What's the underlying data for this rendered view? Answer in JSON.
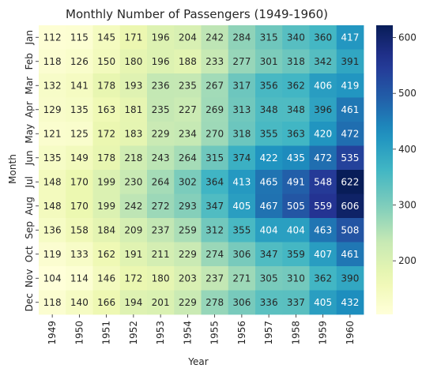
{
  "chart_data": {
    "type": "heatmap",
    "title": "Monthly Number of Passengers (1949-1960)",
    "xlabel": "Year",
    "ylabel": "Month",
    "x": [
      "1949",
      "1950",
      "1951",
      "1952",
      "1953",
      "1954",
      "1955",
      "1956",
      "1957",
      "1958",
      "1959",
      "1960"
    ],
    "y": [
      "Jan",
      "Feb",
      "Mar",
      "Apr",
      "May",
      "Jun",
      "Jul",
      "Aug",
      "Sep",
      "Oct",
      "Nov",
      "Dec"
    ],
    "values": [
      [
        112,
        115,
        145,
        171,
        196,
        204,
        242,
        284,
        315,
        340,
        360,
        417
      ],
      [
        118,
        126,
        150,
        180,
        196,
        188,
        233,
        277,
        301,
        318,
        342,
        391
      ],
      [
        132,
        141,
        178,
        193,
        236,
        235,
        267,
        317,
        356,
        362,
        406,
        419
      ],
      [
        129,
        135,
        163,
        181,
        235,
        227,
        269,
        313,
        348,
        348,
        396,
        461
      ],
      [
        121,
        125,
        172,
        183,
        229,
        234,
        270,
        318,
        355,
        363,
        420,
        472
      ],
      [
        135,
        149,
        178,
        218,
        243,
        264,
        315,
        374,
        422,
        435,
        472,
        535
      ],
      [
        148,
        170,
        199,
        230,
        264,
        302,
        364,
        413,
        465,
        491,
        548,
        622
      ],
      [
        148,
        170,
        199,
        242,
        272,
        293,
        347,
        405,
        467,
        505,
        559,
        606
      ],
      [
        136,
        158,
        184,
        209,
        237,
        259,
        312,
        355,
        404,
        404,
        463,
        508
      ],
      [
        119,
        133,
        162,
        191,
        211,
        229,
        274,
        306,
        347,
        359,
        407,
        461
      ],
      [
        104,
        114,
        146,
        172,
        180,
        203,
        237,
        271,
        305,
        310,
        362,
        390
      ],
      [
        118,
        140,
        166,
        194,
        201,
        229,
        278,
        306,
        336,
        337,
        405,
        432
      ]
    ],
    "colormap": "YlGnBu",
    "colorbar": {
      "min": 104,
      "max": 622,
      "ticks": [
        200,
        300,
        400,
        500,
        600
      ]
    },
    "annotations": true,
    "grid": false,
    "legend": "colorbar-right"
  }
}
